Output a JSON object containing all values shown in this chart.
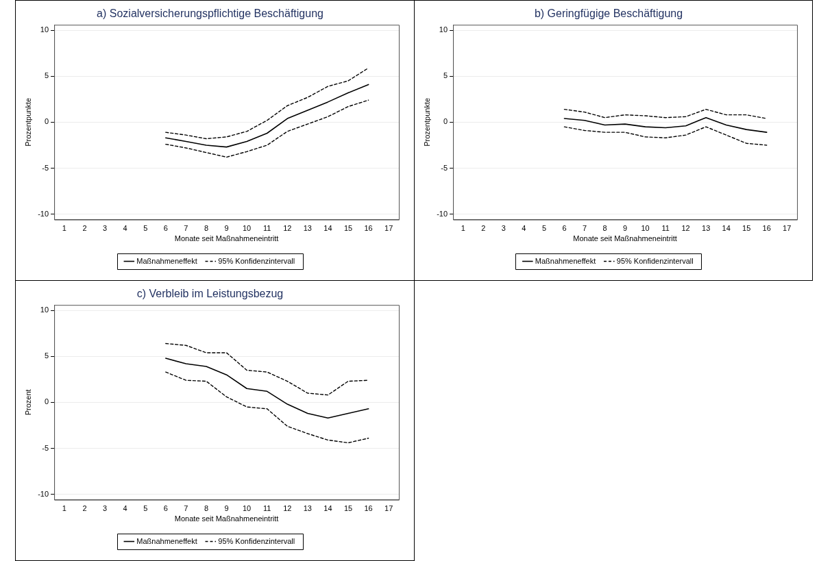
{
  "chart_data": [
    {
      "type": "line",
      "title": "a) Sozialversicherungspflichtige Beschäftigung",
      "xlabel": "Monate seit Maßnahmeneintritt",
      "ylabel": "Prozentpunkte",
      "x": [
        6,
        7,
        8,
        9,
        10,
        11,
        12,
        13,
        14,
        15,
        16
      ],
      "series": [
        {
          "name": "Maßnahmeneffekt",
          "color": "#000000",
          "line_style": "solid",
          "values": [
            -1.7,
            -2.1,
            -2.5,
            -2.7,
            -2.1,
            -1.2,
            0.4,
            1.3,
            2.2,
            3.2,
            4.1
          ]
        },
        {
          "name": "95% Konfidenzintervall",
          "color": "#000000",
          "line_style": "dashed",
          "values": [
            -1.1,
            -1.4,
            -1.8,
            -1.6,
            -1.0,
            0.2,
            1.8,
            2.7,
            3.9,
            4.5,
            5.9
          ]
        },
        {
          "color": "#000000",
          "line_style": "dashed",
          "values": [
            -2.4,
            -2.8,
            -3.3,
            -3.8,
            -3.2,
            -2.5,
            -1.0,
            -0.2,
            0.6,
            1.7,
            2.4
          ]
        }
      ],
      "xlim": [
        0.5,
        17.5
      ],
      "xticks": [
        1,
        2,
        3,
        4,
        5,
        6,
        7,
        8,
        9,
        10,
        11,
        12,
        13,
        14,
        15,
        16,
        17
      ],
      "ylim": [
        -10.6,
        10.6
      ],
      "yticks": [
        -10,
        -5,
        0,
        5,
        10
      ],
      "grid": "y",
      "legend": "bottom"
    },
    {
      "type": "line",
      "title": "b) Geringfügige Beschäftigung",
      "xlabel": "Monate seit Maßnahmeneintritt",
      "ylabel": "Prozentpunkte",
      "x": [
        6,
        7,
        8,
        9,
        10,
        11,
        12,
        13,
        14,
        15,
        16
      ],
      "series": [
        {
          "name": "Maßnahmeneffekt",
          "color": "#000000",
          "line_style": "solid",
          "values": [
            0.4,
            0.2,
            -0.3,
            -0.2,
            -0.5,
            -0.6,
            -0.4,
            0.5,
            -0.3,
            -0.8,
            -1.1
          ]
        },
        {
          "name": "95% Konfidenzintervall",
          "color": "#000000",
          "line_style": "dashed",
          "values": [
            1.4,
            1.1,
            0.5,
            0.8,
            0.7,
            0.5,
            0.6,
            1.4,
            0.8,
            0.8,
            0.4
          ]
        },
        {
          "color": "#000000",
          "line_style": "dashed",
          "values": [
            -0.5,
            -0.9,
            -1.1,
            -1.1,
            -1.6,
            -1.7,
            -1.4,
            -0.5,
            -1.4,
            -2.3,
            -2.5
          ]
        }
      ],
      "xlim": [
        0.5,
        17.5
      ],
      "xticks": [
        1,
        2,
        3,
        4,
        5,
        6,
        7,
        8,
        9,
        10,
        11,
        12,
        13,
        14,
        15,
        16,
        17
      ],
      "ylim": [
        -10.6,
        10.6
      ],
      "yticks": [
        -10,
        -5,
        0,
        5,
        10
      ],
      "grid": "y",
      "legend": "bottom"
    },
    {
      "type": "line",
      "title": "c) Verbleib im Leistungsbezug",
      "xlabel": "Monate seit Maßnahmeneintritt",
      "ylabel": "Prozent",
      "x": [
        6,
        7,
        8,
        9,
        10,
        11,
        12,
        13,
        14,
        15,
        16
      ],
      "series": [
        {
          "name": "Maßnahmeneffekt",
          "color": "#000000",
          "line_style": "solid",
          "values": [
            4.8,
            4.2,
            3.9,
            3.0,
            1.5,
            1.2,
            -0.2,
            -1.2,
            -1.7,
            -1.2,
            -0.7
          ]
        },
        {
          "name": "95% Konfidenzintervall",
          "color": "#000000",
          "line_style": "dashed",
          "values": [
            6.4,
            6.2,
            5.4,
            5.4,
            3.5,
            3.3,
            2.3,
            1.0,
            0.8,
            2.3,
            2.4
          ]
        },
        {
          "color": "#000000",
          "line_style": "dashed",
          "values": [
            3.3,
            2.4,
            2.3,
            0.6,
            -0.5,
            -0.7,
            -2.6,
            -3.4,
            -4.1,
            -4.4,
            -3.9
          ]
        }
      ],
      "xlim": [
        0.5,
        17.5
      ],
      "xticks": [
        1,
        2,
        3,
        4,
        5,
        6,
        7,
        8,
        9,
        10,
        11,
        12,
        13,
        14,
        15,
        16,
        17
      ],
      "ylim": [
        -10.6,
        10.6
      ],
      "yticks": [
        -10,
        -5,
        0,
        5,
        10
      ],
      "grid": "y",
      "legend": "bottom"
    }
  ]
}
